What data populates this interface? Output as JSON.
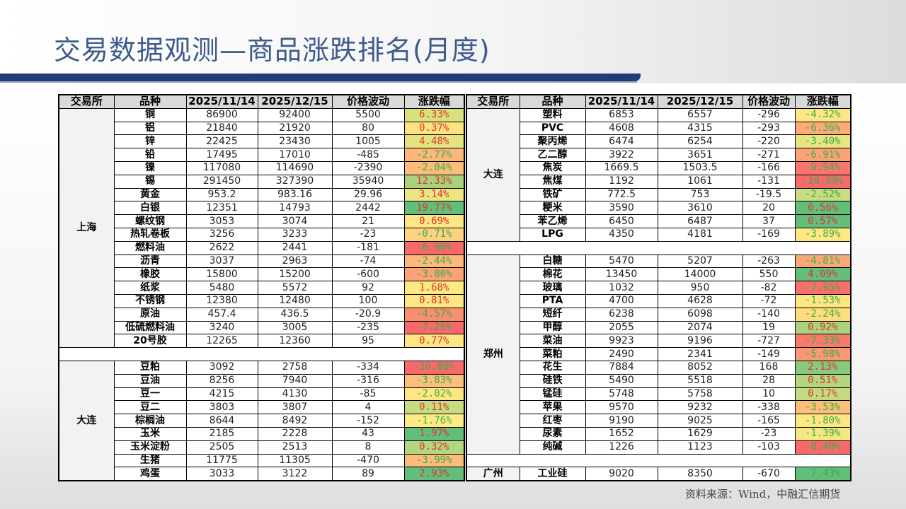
{
  "title": "交易数据观测—商品涨跌排名(月度)",
  "source": "资料来源：Wind，中融汇信期货",
  "colors": {
    "up_text": "#e0362c",
    "down_text": "#3cae48",
    "title": "#3e5b8c",
    "bar": "#1f3d78"
  },
  "headers": [
    "交易所",
    "品种",
    "2025/11/14",
    "2025/12/15",
    "价格波动",
    "涨跌幅"
  ],
  "left_table": {
    "groups": [
      {
        "exchange": "上海",
        "rows": [
          [
            "铜",
            "86900",
            "92400",
            "5500",
            "6.33%",
            "#d9e17f"
          ],
          [
            "铝",
            "21840",
            "21920",
            "80",
            "0.37%",
            "#fde282"
          ],
          [
            "锌",
            "22425",
            "23430",
            "1005",
            "4.48%",
            "#e4e381"
          ],
          [
            "铅",
            "17495",
            "17010",
            "-485",
            "-2.77%",
            "#fcb679"
          ],
          [
            "镍",
            "117080",
            "114690",
            "-2390",
            "-2.04%",
            "#fcbd7b"
          ],
          [
            "锡",
            "291450",
            "327390",
            "35940",
            "12.33%",
            "#a9d27f"
          ],
          [
            "黄金",
            "953.2",
            "983.16",
            "29.96",
            "3.14%",
            "#ebe582"
          ],
          [
            "白银",
            "12351",
            "14793",
            "2442",
            "19.77%",
            "#63be7b"
          ],
          [
            "螺纹钢",
            "3053",
            "3074",
            "21",
            "0.69%",
            "#fde683"
          ],
          [
            "热轧卷板",
            "3256",
            "3233",
            "-23",
            "-0.71%",
            "#fdd17f"
          ],
          [
            "燃料油",
            "2622",
            "2441",
            "-181",
            "-6.90%",
            "#f8696b"
          ],
          [
            "沥青",
            "3037",
            "2963",
            "-74",
            "-2.44%",
            "#fcb97a"
          ],
          [
            "橡胶",
            "15800",
            "15200",
            "-600",
            "-3.80%",
            "#fba276"
          ],
          [
            "纸浆",
            "5480",
            "5572",
            "92",
            "1.68%",
            "#fbe983"
          ],
          [
            "不锈钢",
            "12380",
            "12480",
            "100",
            "0.81%",
            "#fde683"
          ],
          [
            "原油",
            "457.4",
            "436.5",
            "-20.9",
            "-4.57%",
            "#f98e71"
          ],
          [
            "低硫燃料油",
            "3240",
            "3005",
            "-235",
            "-7.25%",
            "#f8696b"
          ],
          [
            "20号胶",
            "12265",
            "12360",
            "95",
            "0.77%",
            "#fde683"
          ]
        ]
      },
      {
        "exchange": "大连",
        "rows": [
          [
            "豆粕",
            "3092",
            "2758",
            "-334",
            "-10.80%",
            "#f8696b"
          ],
          [
            "豆油",
            "8256",
            "7940",
            "-316",
            "-3.83%",
            "#fcbf7b"
          ],
          [
            "豆一",
            "4215",
            "4130",
            "-85",
            "-2.02%",
            "#fee783"
          ],
          [
            "豆二",
            "3803",
            "3807",
            "4",
            "0.11%",
            "#c5dc81"
          ],
          [
            "棕榈油",
            "8644",
            "8492",
            "-152",
            "-1.76%",
            "#ffeb84"
          ],
          [
            "玉米",
            "2185",
            "2228",
            "43",
            "1.97%",
            "#63be7b"
          ],
          [
            "玉米淀粉",
            "2505",
            "2513",
            "8",
            "0.32%",
            "#b3d680"
          ],
          [
            "生猪",
            "11775",
            "11305",
            "-470",
            "-3.99%",
            "#fcbc7a"
          ],
          [
            "鸡蛋",
            "3033",
            "3122",
            "89",
            "2.93%",
            "#63be7b"
          ]
        ]
      }
    ]
  },
  "right_table": {
    "groups": [
      {
        "exchange": "大连",
        "rows": [
          [
            "塑料",
            "6853",
            "6557",
            "-296",
            "-4.32%",
            "#fee683"
          ],
          [
            "PVC",
            "4608",
            "4315",
            "-293",
            "-6.36%",
            "#fcaa77"
          ],
          [
            "聚丙烯",
            "6474",
            "6254",
            "-220",
            "-3.40%",
            "#e8e482"
          ],
          [
            "乙二醇",
            "3922",
            "3651",
            "-271",
            "-6.91%",
            "#fba276"
          ],
          [
            "焦炭",
            "1669.5",
            "1503.5",
            "-166",
            "-9.94%",
            "#f8766e"
          ],
          [
            "焦煤",
            "1192",
            "1061",
            "-131",
            "-10.99%",
            "#f8696b"
          ],
          [
            "铁矿",
            "772.5",
            "753",
            "-19.5",
            "-2.52%",
            "#c9dc81"
          ],
          [
            "粳米",
            "3590",
            "3610",
            "20",
            "0.56%",
            "#63be7b"
          ],
          [
            "苯乙烯",
            "6450",
            "6487",
            "37",
            "0.57%",
            "#63be7b"
          ],
          [
            "LPG",
            "4350",
            "4181",
            "-169",
            "-3.89%",
            "#fee883"
          ]
        ]
      },
      {
        "exchange": "郑州",
        "rows": [
          [
            "白糖",
            "5470",
            "5207",
            "-263",
            "-4.81%",
            "#fba877"
          ],
          [
            "棉花",
            "13450",
            "14000",
            "550",
            "4.09%",
            "#63be7b"
          ],
          [
            "玻璃",
            "1032",
            "950",
            "-82",
            "-7.95%",
            "#f8706c"
          ],
          [
            "PTA",
            "4700",
            "4628",
            "-72",
            "-1.53%",
            "#fee783"
          ],
          [
            "短纤",
            "6238",
            "6098",
            "-140",
            "-2.24%",
            "#fedd81"
          ],
          [
            "甲醇",
            "2055",
            "2074",
            "19",
            "0.92%",
            "#a9d27f"
          ],
          [
            "菜油",
            "9923",
            "9196",
            "-727",
            "-7.33%",
            "#f8796e"
          ],
          [
            "菜粕",
            "2490",
            "2341",
            "-149",
            "-5.98%",
            "#fa9874"
          ],
          [
            "花生",
            "7884",
            "8052",
            "168",
            "2.13%",
            "#88c97e"
          ],
          [
            "硅铁",
            "5490",
            "5518",
            "28",
            "0.51%",
            "#b5d680"
          ],
          [
            "锰硅",
            "5748",
            "5758",
            "10",
            "0.17%",
            "#c3da80"
          ],
          [
            "苹果",
            "9570",
            "9232",
            "-338",
            "-3.53%",
            "#fcbe7b"
          ],
          [
            "红枣",
            "9190",
            "9025",
            "-165",
            "-1.80%",
            "#fee683"
          ],
          [
            "尿素",
            "1652",
            "1629",
            "-23",
            "-1.39%",
            "#f5e783"
          ],
          [
            "纯碱",
            "1226",
            "1123",
            "-103",
            "-8.40%",
            "#f8696b"
          ]
        ]
      },
      {
        "exchange": "广州",
        "rows": [
          [
            "工业硅",
            "9020",
            "8350",
            "-670",
            "-7.43%",
            "#63be7b"
          ]
        ]
      }
    ]
  }
}
